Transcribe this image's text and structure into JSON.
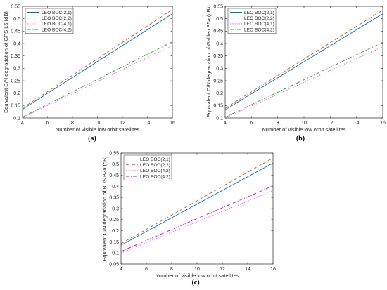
{
  "chart_data": [
    {
      "type": "line",
      "panel_label": "(a)",
      "xlabel": "Number of visible low orbit satellites",
      "ylabel": "Equivalent C/N degradation of GPS L5 (dB)",
      "xlim": [
        4,
        16
      ],
      "ylim": [
        0.1,
        0.55
      ],
      "xticks": [
        4,
        6,
        8,
        10,
        12,
        14,
        16
      ],
      "yticks": [
        0.1,
        0.15,
        0.2,
        0.25,
        0.3,
        0.35,
        0.4,
        0.45,
        0.5,
        0.55
      ],
      "grid": false,
      "legend_position": "top-left",
      "series": [
        {
          "name": "LEO BOC(2,1)",
          "color": "#0072bd",
          "dash": "solid",
          "x": [
            4,
            16
          ],
          "values": [
            0.135,
            0.52
          ]
        },
        {
          "name": "LEO BOC(2,2)",
          "color": "#d95319",
          "dash": "dashed",
          "x": [
            4,
            16
          ],
          "values": [
            0.14,
            0.537
          ]
        },
        {
          "name": "LEO BOC(4,1)",
          "color": "#ff33ff",
          "dash": "dotted",
          "x": [
            4,
            16
          ],
          "values": [
            0.101,
            0.392
          ]
        },
        {
          "name": "LEO BOC(4,2)",
          "color": "#2ca02c",
          "dash": "dashdot",
          "x": [
            4,
            16
          ],
          "values": [
            0.104,
            0.407
          ]
        }
      ]
    },
    {
      "type": "line",
      "panel_label": "(b)",
      "xlabel": "Number of visible low orbit satellites",
      "ylabel": "Equivalent C/N degradation of Galileo E5a (dB)",
      "xlim": [
        4,
        16
      ],
      "ylim": [
        0.1,
        0.55
      ],
      "xticks": [
        4,
        6,
        8,
        10,
        12,
        14,
        16
      ],
      "yticks": [
        0.1,
        0.15,
        0.2,
        0.25,
        0.3,
        0.35,
        0.4,
        0.45,
        0.5,
        0.55
      ],
      "grid": false,
      "legend_position": "top-left",
      "series": [
        {
          "name": "LEO BOC(2,1)",
          "color": "#0072bd",
          "dash": "solid",
          "x": [
            4,
            16
          ],
          "values": [
            0.133,
            0.52
          ]
        },
        {
          "name": "LEO BOC(2,2)",
          "color": "#d95319",
          "dash": "dashed",
          "x": [
            4,
            16
          ],
          "values": [
            0.139,
            0.535
          ]
        },
        {
          "name": "LEO BOC(4,1)",
          "color": "#ff33ff",
          "dash": "dotted",
          "x": [
            4,
            16
          ],
          "values": [
            0.1,
            0.387
          ]
        },
        {
          "name": "LEO BOC(4,2)",
          "color": "#2ca02c",
          "dash": "dashdot",
          "x": [
            4,
            16
          ],
          "values": [
            0.103,
            0.405
          ]
        }
      ]
    },
    {
      "type": "line",
      "panel_label": "(c)",
      "xlabel": "Number of visible low orbit satellites",
      "ylabel": "Equivalent C/N degradation of BDS B2a (dB)",
      "xlim": [
        4,
        16
      ],
      "ylim": [
        0.05,
        0.55
      ],
      "xticks": [
        4,
        6,
        8,
        10,
        12,
        14,
        16
      ],
      "yticks": [
        0.05,
        0.1,
        0.15,
        0.2,
        0.25,
        0.3,
        0.35,
        0.4,
        0.45,
        0.5,
        0.55
      ],
      "grid": false,
      "legend_position": "top-left",
      "series": [
        {
          "name": "LEO BOC(2,1)",
          "color": "#0072bd",
          "dash": "solid",
          "x": [
            4,
            16
          ],
          "values": [
            0.135,
            0.505
          ]
        },
        {
          "name": "LEO BOC(2,2)",
          "color": "#d95319",
          "dash": "dashed",
          "x": [
            4,
            16
          ],
          "values": [
            0.142,
            0.528
          ]
        },
        {
          "name": "LEO BOC(4,2)",
          "color": "#ff33ff",
          "dash": "dotted",
          "x": [
            4,
            16
          ],
          "values": [
            0.1,
            0.38
          ]
        },
        {
          "name": "LEO BOC(4,2)",
          "color": "#cc00cc",
          "dash": "dashdot",
          "x": [
            4,
            16
          ],
          "values": [
            0.107,
            0.402
          ]
        }
      ]
    }
  ]
}
